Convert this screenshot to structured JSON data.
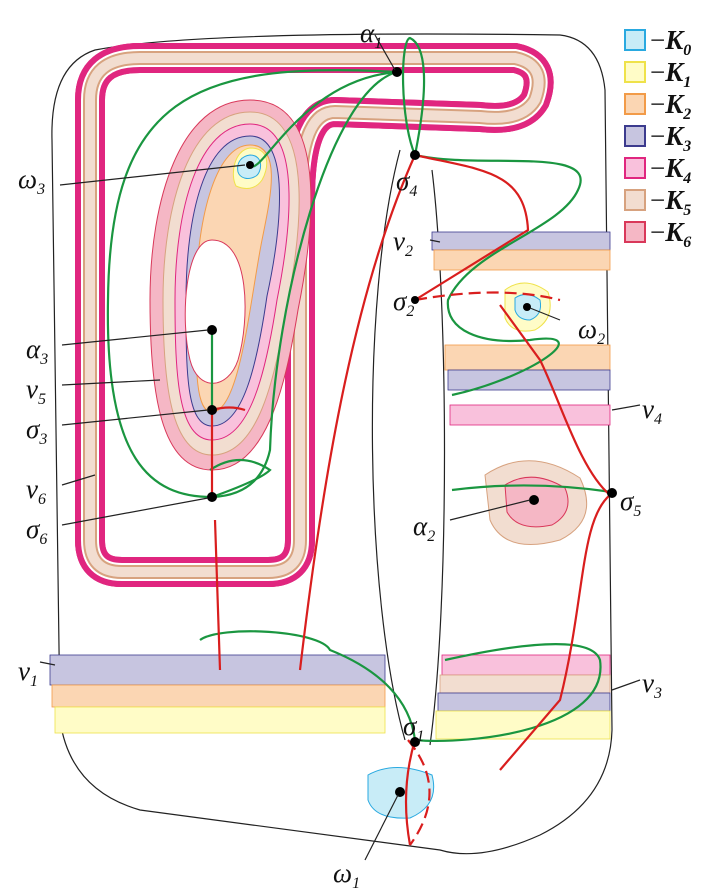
{
  "legend": [
    {
      "prefix": "−",
      "symbol": "K",
      "sub": "0",
      "fill": "#c8ecf7",
      "stroke": "#29a9e0"
    },
    {
      "prefix": "−",
      "symbol": "K",
      "sub": "1",
      "fill": "#fffcc7",
      "stroke": "#efe24a"
    },
    {
      "prefix": "−",
      "symbol": "K",
      "sub": "2",
      "fill": "#fbd6b3",
      "stroke": "#f29b48"
    },
    {
      "prefix": "−",
      "symbol": "K",
      "sub": "3",
      "fill": "#c7c5e0",
      "stroke": "#3c3b8e"
    },
    {
      "prefix": "−",
      "symbol": "K",
      "sub": "4",
      "fill": "#f9c1dc",
      "stroke": "#e0267f"
    },
    {
      "prefix": "−",
      "symbol": "K",
      "sub": "5",
      "fill": "#f2ddd0",
      "stroke": "#d7a27f"
    },
    {
      "prefix": "−",
      "symbol": "K",
      "sub": "6",
      "fill": "#f5b7c5",
      "stroke": "#d9385a"
    }
  ],
  "labels": [
    {
      "symbol": "α",
      "sub": "1"
    },
    {
      "symbol": "σ",
      "sub": "4"
    },
    {
      "symbol": "ω",
      "sub": "3"
    },
    {
      "symbol": "ν",
      "sub": "2"
    },
    {
      "symbol": "σ",
      "sub": "2"
    },
    {
      "symbol": "ω",
      "sub": "2"
    },
    {
      "symbol": "α",
      "sub": "3"
    },
    {
      "symbol": "ν",
      "sub": "5"
    },
    {
      "symbol": "σ",
      "sub": "3"
    },
    {
      "symbol": "ν",
      "sub": "4"
    },
    {
      "symbol": "ν",
      "sub": "6"
    },
    {
      "symbol": "σ",
      "sub": "6"
    },
    {
      "symbol": "σ",
      "sub": "5"
    },
    {
      "symbol": "α",
      "sub": "2"
    },
    {
      "symbol": "ν",
      "sub": "1"
    },
    {
      "symbol": "ν",
      "sub": "3"
    },
    {
      "symbol": "σ",
      "sub": "1"
    },
    {
      "symbol": "ω",
      "sub": "1"
    }
  ]
}
